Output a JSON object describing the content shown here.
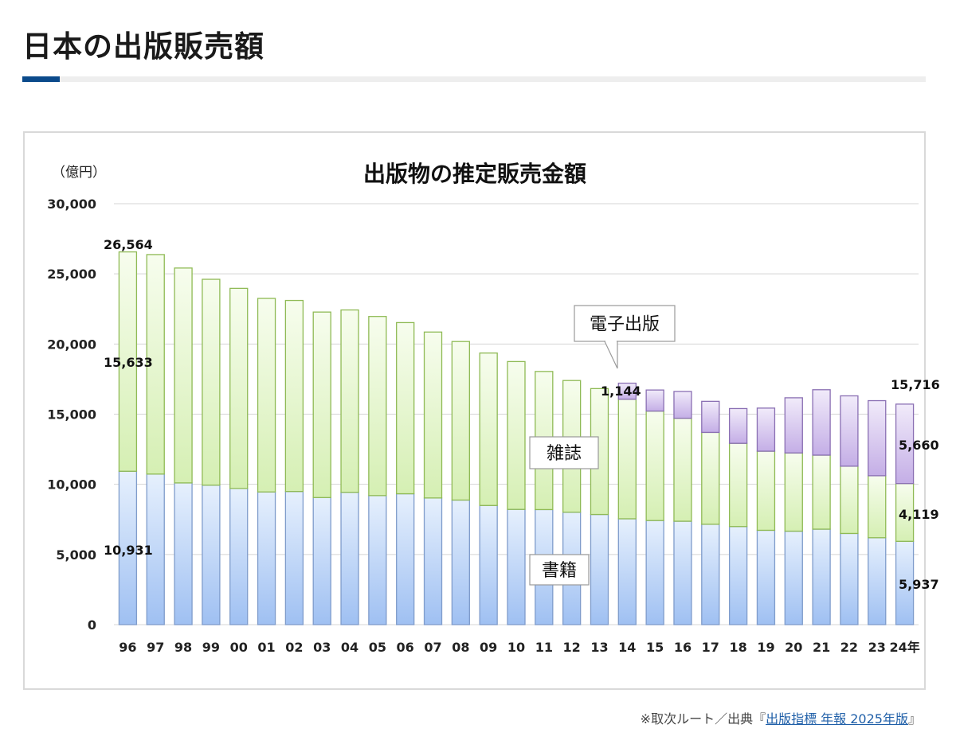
{
  "page": {
    "title": "日本の出版販売額",
    "source_prefix": "※取次ルート／出典『",
    "source_link": "出版指標 年報 2025年版",
    "source_suffix": "』"
  },
  "colors": {
    "accent": "#0b4a8b",
    "books": "#a9c8f5",
    "magazines": "#d9f2b8",
    "ebooks": "#c7b3e6",
    "link": "#1f5fa8"
  },
  "chart_data": {
    "type": "bar",
    "stacked": true,
    "title": "出版物の推定販売金額",
    "ylabel": "（億円）",
    "ylim": [
      0,
      30000
    ],
    "yticks": [
      0,
      5000,
      10000,
      15000,
      20000,
      25000,
      30000
    ],
    "ytick_labels": [
      "0",
      "5,000",
      "10,000",
      "15,000",
      "20,000",
      "25,000",
      "30,000"
    ],
    "grid": true,
    "categories": [
      "96",
      "97",
      "98",
      "99",
      "00",
      "01",
      "02",
      "03",
      "04",
      "05",
      "06",
      "07",
      "08",
      "09",
      "10",
      "11",
      "12",
      "13",
      "14",
      "15",
      "16",
      "17",
      "18",
      "19",
      "20",
      "21",
      "22",
      "23",
      "24年"
    ],
    "series": [
      {
        "name": "書籍",
        "color_key": "books",
        "values": [
          10931,
          10730,
          10100,
          9940,
          9706,
          9456,
          9490,
          9056,
          9429,
          9197,
          9326,
          9026,
          8878,
          8492,
          8213,
          8199,
          8013,
          7851,
          7544,
          7419,
          7370,
          7152,
          6991,
          6723,
          6661,
          6804,
          6497,
          6194,
          5937
        ]
      },
      {
        "name": "雑誌",
        "color_key": "magazines",
        "values": [
          15633,
          15644,
          15315,
          14672,
          14261,
          13794,
          13616,
          13222,
          12998,
          12767,
          12200,
          11827,
          11299,
          10864,
          10536,
          9844,
          9385,
          8972,
          8520,
          7801,
          7339,
          6548,
          5930,
          5637,
          5576,
          5276,
          4795,
          4418,
          4119
        ]
      },
      {
        "name": "電子出版",
        "color_key": "ebooks",
        "values": [
          0,
          0,
          0,
          0,
          0,
          0,
          0,
          0,
          0,
          0,
          0,
          0,
          0,
          0,
          0,
          0,
          0,
          0,
          1144,
          1502,
          1909,
          2215,
          2479,
          3072,
          3931,
          4662,
          5013,
          5351,
          5660
        ]
      }
    ],
    "data_labels": {
      "total_96": "26,564",
      "magazines_96": "15,633",
      "books_96": "10,931",
      "ebooks_14": "1,144",
      "total_24": "15,716",
      "ebooks_24": "5,660",
      "magazines_24": "4,119",
      "books_24": "5,937"
    },
    "callouts": {
      "ebooks": "電子出版",
      "magazines": "雑誌",
      "books": "書籍"
    }
  }
}
